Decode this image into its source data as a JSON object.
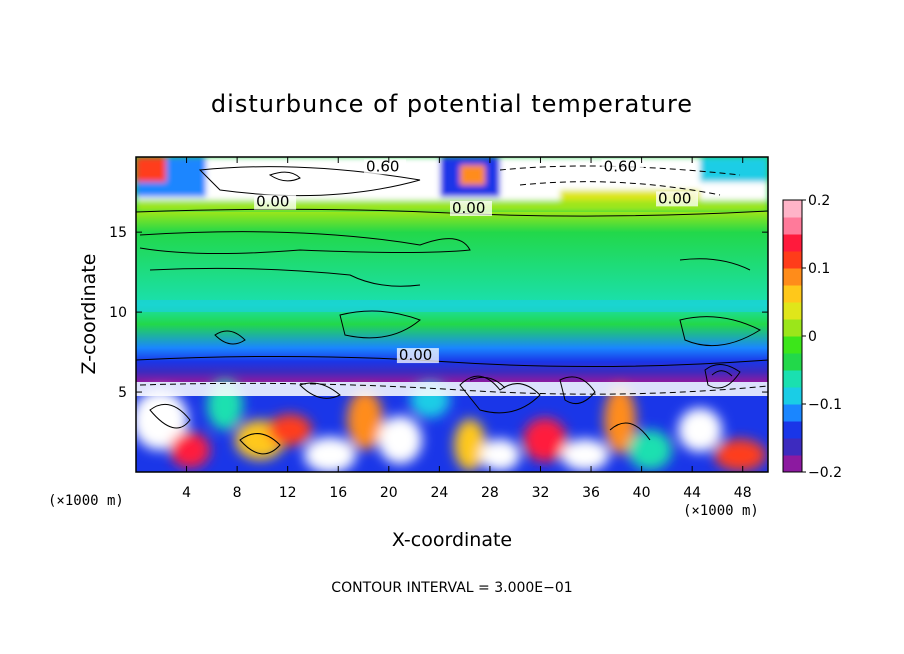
{
  "chart_data": {
    "type": "heatmap",
    "title": "disturbunce of potential temperature",
    "xlabel": "X-coordinate",
    "ylabel": "Z-coordinate",
    "x_unit_left": "(×1000 m)",
    "x_unit_right": "(×1000 m)",
    "xlim": [
      0,
      50
    ],
    "ylim": [
      0,
      19.7
    ],
    "x_ticks": [
      "4",
      "8",
      "12",
      "16",
      "20",
      "24",
      "28",
      "32",
      "36",
      "40",
      "44",
      "48"
    ],
    "y_ticks": [
      "5",
      "10",
      "15"
    ],
    "x_tick_values": [
      4,
      8,
      12,
      16,
      20,
      24,
      28,
      32,
      36,
      40,
      44,
      48
    ],
    "y_tick_values": [
      5,
      10,
      15
    ],
    "colorbar": {
      "min": -0.2,
      "max": 0.2,
      "tick_labels": [
        "0.2",
        "0.1",
        "0",
        "−0.1",
        "−0.2"
      ],
      "tick_values": [
        0.2,
        0.1,
        0,
        -0.1,
        -0.2
      ],
      "colors": [
        "#8c1aa0",
        "#3d2bbf",
        "#1a36e8",
        "#1a86ff",
        "#1acde6",
        "#1ae0b0",
        "#22d84a",
        "#3ce61a",
        "#9be61a",
        "#e0e61a",
        "#ffc81a",
        "#ff8c1a",
        "#ff3c1a",
        "#ff1a3c",
        "#ff7a9a",
        "#ffb4c8"
      ]
    },
    "contour_labels": [
      {
        "text": "0.60",
        "x": 18.2,
        "y": 18.8
      },
      {
        "text": "0.60",
        "x": 37.0,
        "y": 18.8
      },
      {
        "text": "0.00",
        "x": 9.5,
        "y": 16.6
      },
      {
        "text": "0.00",
        "x": 25.0,
        "y": 16.2
      },
      {
        "text": "0.00",
        "x": 41.3,
        "y": 16.8
      },
      {
        "text": "0.00",
        "x": 20.8,
        "y": 7.0
      }
    ],
    "contour_interval_text": "CONTOUR INTERVAL = 3.000E−01"
  }
}
